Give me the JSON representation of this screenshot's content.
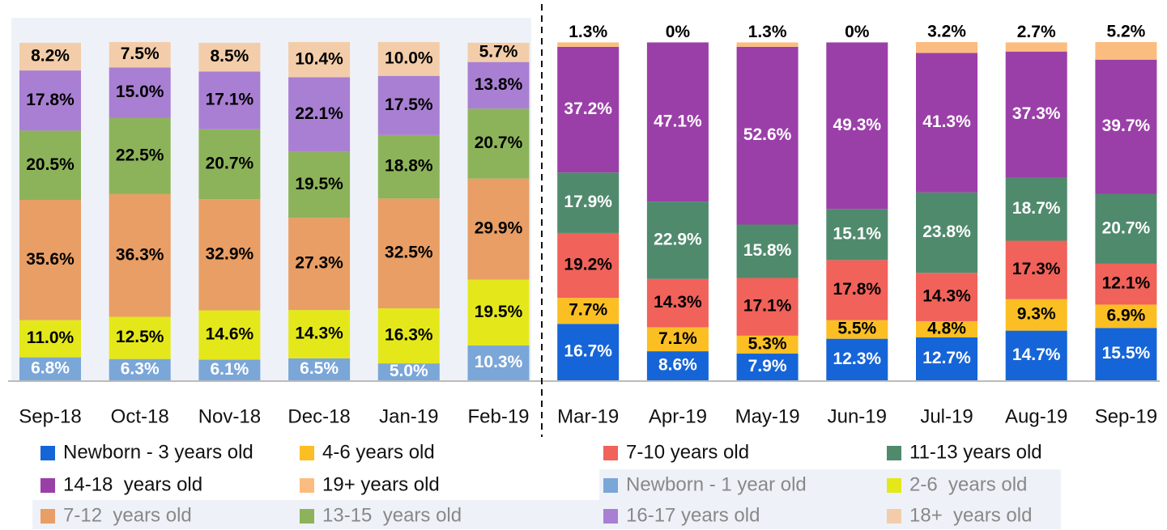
{
  "chart_data": {
    "type": "stacked_bar",
    "categories": [
      "Sep-18",
      "Oct-18",
      "Nov-18",
      "Dec-18",
      "Jan-19",
      "Feb-19",
      "Mar-19",
      "Apr-19",
      "May-19",
      "Jun-19",
      "Jul-19",
      "Aug-19",
      "Sep-19"
    ],
    "series": [
      {
        "name": "Newborn - 3 years old",
        "color": "#1565d8",
        "label_color": "#ffffff",
        "legend_color": "#111111",
        "values": [
          null,
          null,
          null,
          null,
          null,
          null,
          16.7,
          8.6,
          7.9,
          12.3,
          12.7,
          14.7,
          15.5
        ],
        "value_labels": [
          null,
          null,
          null,
          null,
          null,
          null,
          "16.7%",
          "8.6%",
          "7.9%",
          "12.3%",
          "12.7%",
          "14.7%",
          "15.5%"
        ]
      },
      {
        "name": "4-6 years old",
        "color": "#fbbf24",
        "label_color": "#000000",
        "legend_color": "#111111",
        "values": [
          null,
          null,
          null,
          null,
          null,
          null,
          7.7,
          7.1,
          5.3,
          5.5,
          4.8,
          9.3,
          6.9
        ],
        "value_labels": [
          null,
          null,
          null,
          null,
          null,
          null,
          "7.7%",
          "7.1%",
          "5.3%",
          "5.5%",
          "4.8%",
          "9.3%",
          "6.9%"
        ]
      },
      {
        "name": "7-10 years old",
        "color": "#f0625a",
        "label_color": "#000000",
        "legend_color": "#111111",
        "values": [
          null,
          null,
          null,
          null,
          null,
          null,
          19.2,
          14.3,
          17.1,
          17.8,
          14.3,
          17.3,
          12.1
        ],
        "value_labels": [
          null,
          null,
          null,
          null,
          null,
          null,
          "19.2%",
          "14.3%",
          "17.1%",
          "17.8%",
          "14.3%",
          "17.3%",
          "12.1%"
        ]
      },
      {
        "name": "11-13 years old",
        "color": "#4f8a6c",
        "label_color": "#ffffff",
        "legend_color": "#111111",
        "values": [
          null,
          null,
          null,
          null,
          null,
          null,
          17.9,
          22.9,
          15.8,
          15.1,
          23.8,
          18.7,
          20.7
        ],
        "value_labels": [
          null,
          null,
          null,
          null,
          null,
          null,
          "17.9%",
          "22.9%",
          "15.8%",
          "15.1%",
          "23.8%",
          "18.7%",
          "20.7%"
        ]
      },
      {
        "name": "14-18  years old",
        "color": "#9b3fa8",
        "label_color": "#ffffff",
        "legend_color": "#111111",
        "values": [
          null,
          null,
          null,
          null,
          null,
          null,
          37.2,
          47.1,
          52.6,
          49.3,
          41.3,
          37.3,
          39.7
        ],
        "value_labels": [
          null,
          null,
          null,
          null,
          null,
          null,
          "37.2%",
          "47.1%",
          "52.6%",
          "49.3%",
          "41.3%",
          "37.3%",
          "39.7%"
        ]
      },
      {
        "name": "19+ years old",
        "color": "#fbbd7f",
        "label_color": "#000000",
        "legend_color": "#111111",
        "label_position": "outside",
        "values": [
          null,
          null,
          null,
          null,
          null,
          null,
          1.3,
          0,
          1.3,
          0,
          3.2,
          2.7,
          5.2
        ],
        "value_labels": [
          null,
          null,
          null,
          null,
          null,
          null,
          "1.3%",
          "0%",
          "1.3%",
          "0%",
          "3.2%",
          "2.7%",
          "5.2%"
        ]
      },
      {
        "name": "Newborn - 1 year old",
        "color": "#7aa6d8",
        "label_color": "#ffffff",
        "legend_color": "#888888",
        "values": [
          6.8,
          6.3,
          6.1,
          6.5,
          5.0,
          10.3,
          null,
          null,
          null,
          null,
          null,
          null,
          null
        ],
        "value_labels": [
          "6.8%",
          "6.3%",
          "6.1%",
          "6.5%",
          "5.0%",
          "10.3%",
          null,
          null,
          null,
          null,
          null,
          null,
          null
        ]
      },
      {
        "name": "2-6  years old",
        "color": "#e4e81a",
        "label_color": "#000000",
        "legend_color": "#888888",
        "values": [
          11.0,
          12.5,
          14.6,
          14.3,
          16.3,
          19.5,
          null,
          null,
          null,
          null,
          null,
          null,
          null
        ],
        "value_labels": [
          "11.0%",
          "12.5%",
          "14.6%",
          "14.3%",
          "16.3%",
          "19.5%",
          null,
          null,
          null,
          null,
          null,
          null,
          null
        ]
      },
      {
        "name": "7-12  years old",
        "color": "#e89e65",
        "label_color": "#000000",
        "legend_color": "#888888",
        "values": [
          35.6,
          36.3,
          32.9,
          27.3,
          32.5,
          29.9,
          null,
          null,
          null,
          null,
          null,
          null,
          null
        ],
        "value_labels": [
          "35.6%",
          "36.3%",
          "32.9%",
          "27.3%",
          "32.5%",
          "29.9%",
          null,
          null,
          null,
          null,
          null,
          null,
          null
        ]
      },
      {
        "name": "13-15  years old",
        "color": "#8db35a",
        "label_color": "#000000",
        "legend_color": "#888888",
        "values": [
          20.5,
          22.5,
          20.7,
          19.5,
          18.8,
          20.7,
          null,
          null,
          null,
          null,
          null,
          null,
          null
        ],
        "value_labels": [
          "20.5%",
          "22.5%",
          "20.7%",
          "19.5%",
          "18.8%",
          "20.7%",
          null,
          null,
          null,
          null,
          null,
          null,
          null
        ]
      },
      {
        "name": "16-17 years old",
        "color": "#a97fd3",
        "label_color": "#000000",
        "legend_color": "#888888",
        "values": [
          17.8,
          15.0,
          17.1,
          22.1,
          17.5,
          13.8,
          null,
          null,
          null,
          null,
          null,
          null,
          null
        ],
        "value_labels": [
          "17.8%",
          "15.0%",
          "17.1%",
          "22.1%",
          "17.5%",
          "13.8%",
          null,
          null,
          null,
          null,
          null,
          null,
          null
        ]
      },
      {
        "name": "18+  years old",
        "color": "#f3cda9",
        "label_color": "#000000",
        "legend_color": "#888888",
        "values": [
          8.2,
          7.5,
          8.5,
          10.4,
          10.0,
          5.7,
          null,
          null,
          null,
          null,
          null,
          null,
          null
        ],
        "value_labels": [
          "8.2%",
          "7.5%",
          "8.5%",
          "10.4%",
          "10.0%",
          "5.7%",
          null,
          null,
          null,
          null,
          null,
          null,
          null
        ]
      }
    ]
  }
}
